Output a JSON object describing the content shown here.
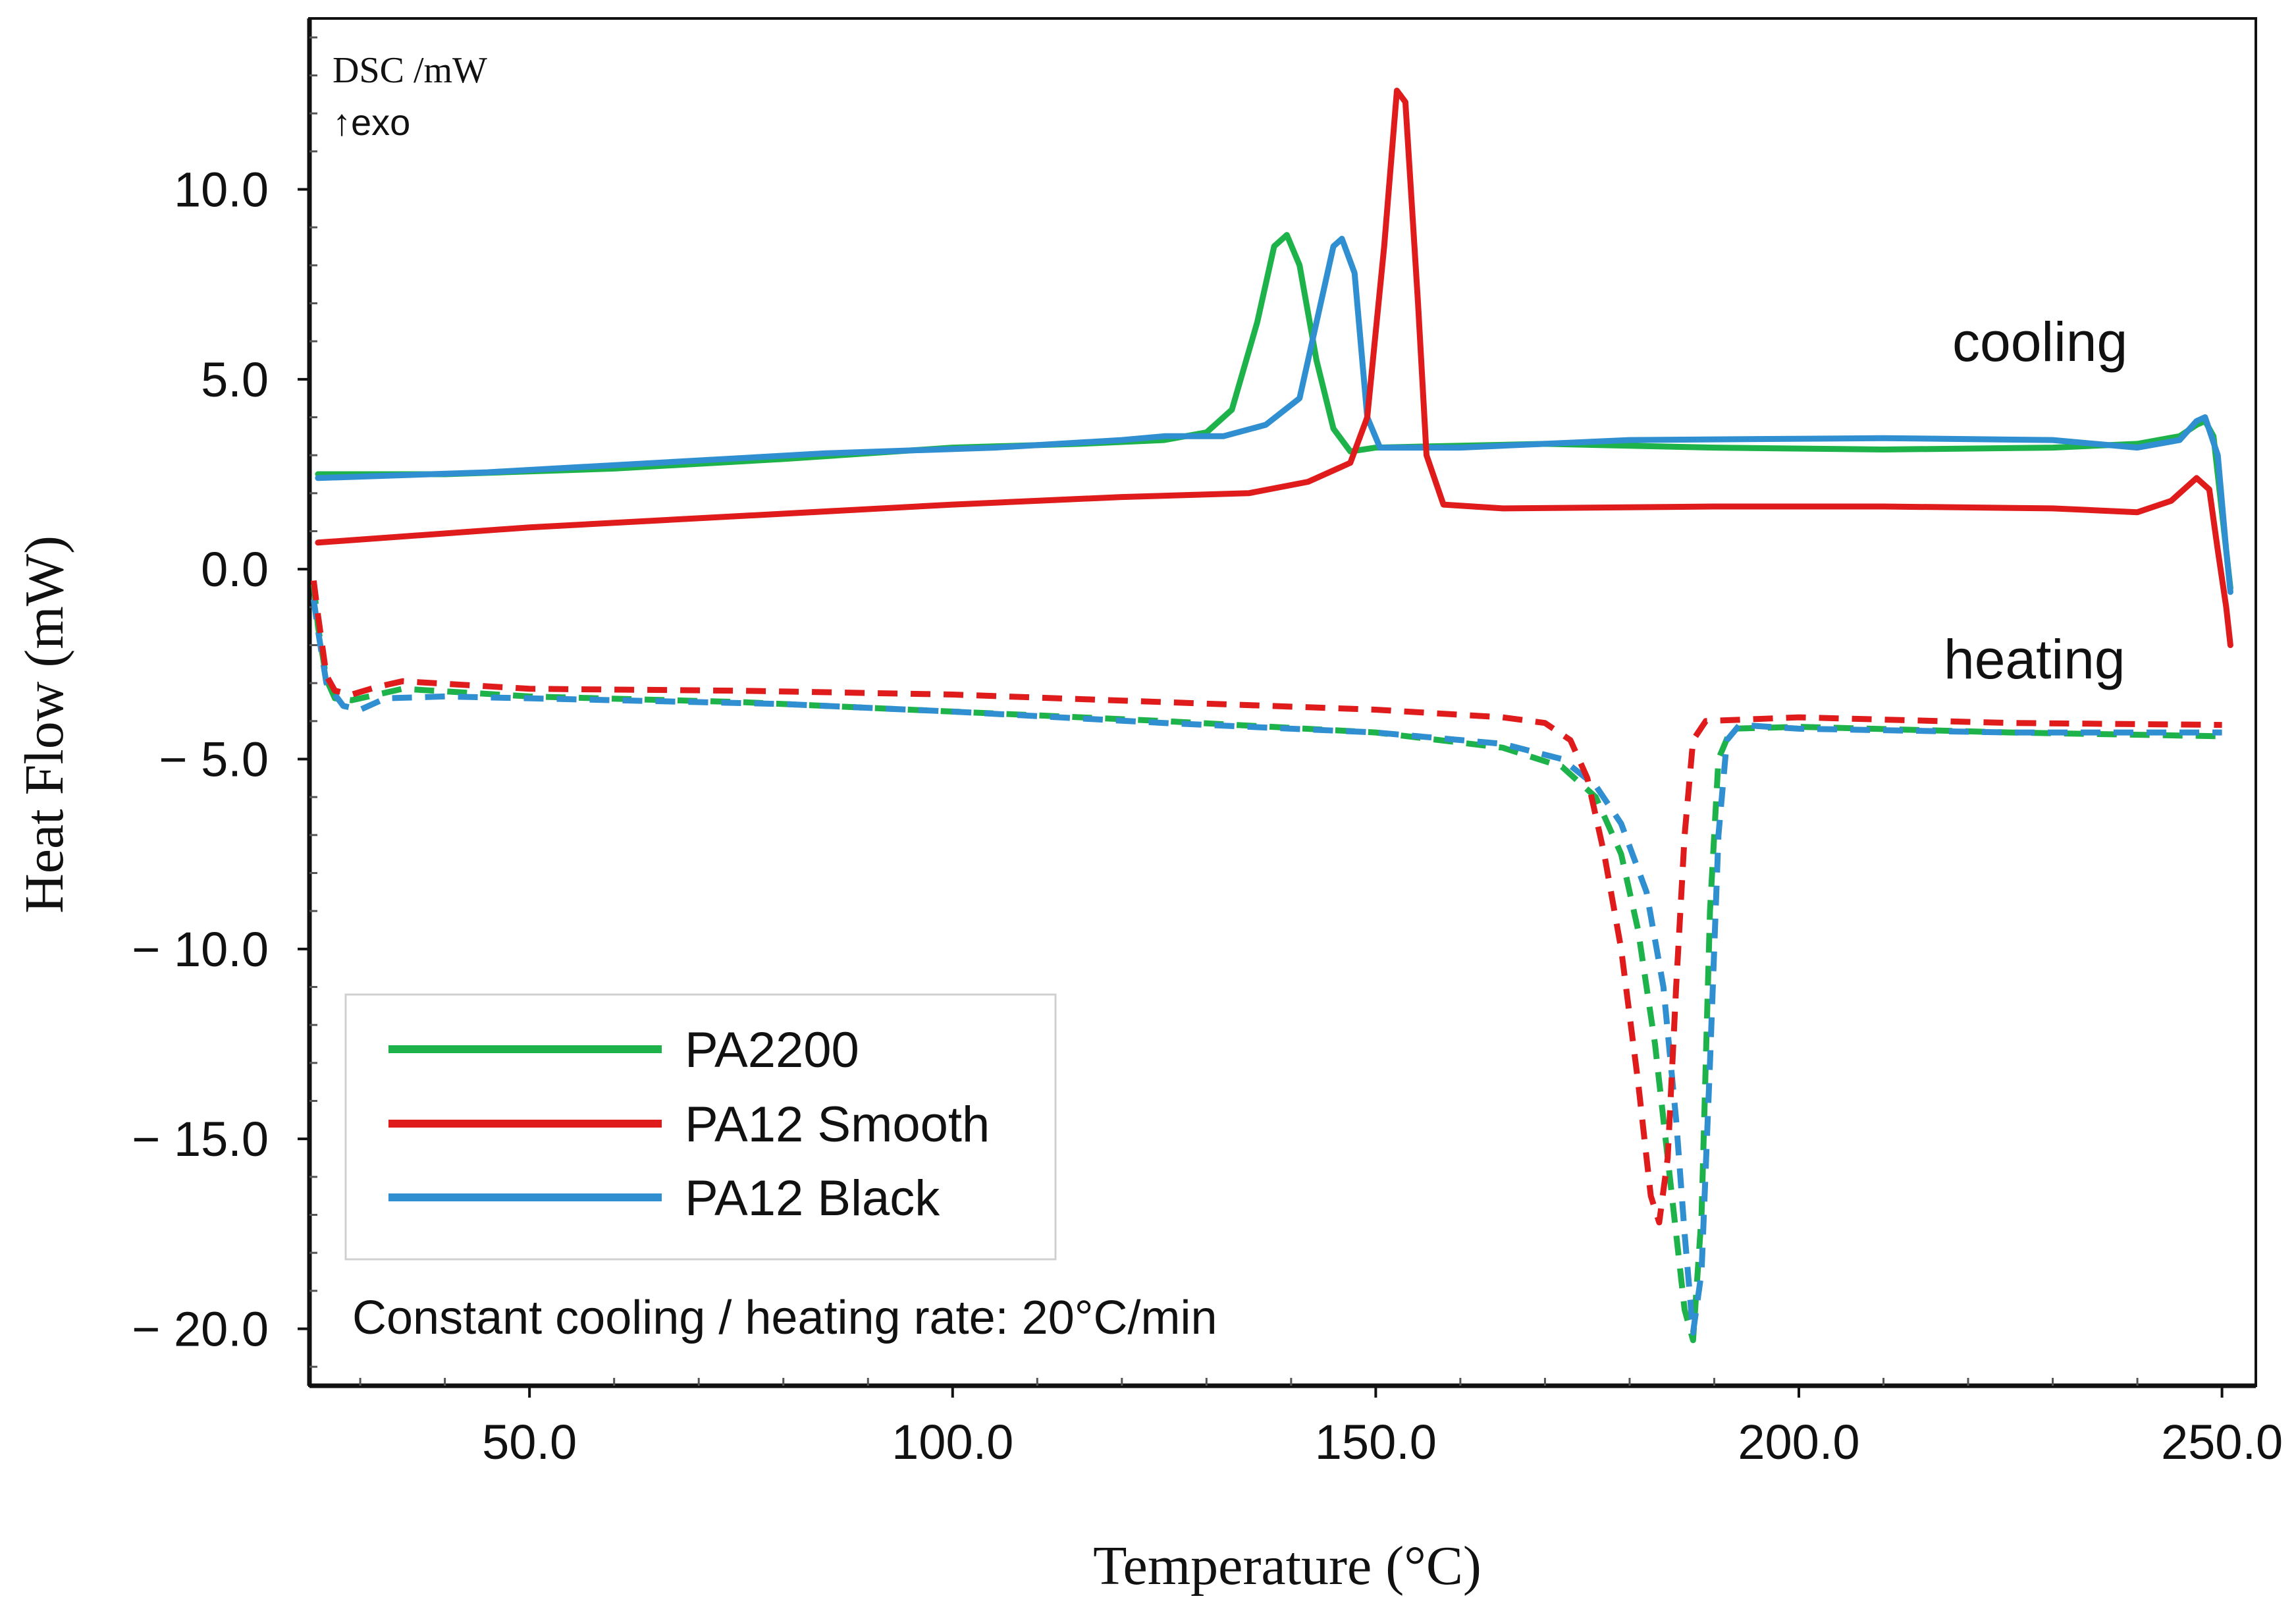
{
  "chart_data": {
    "type": "line",
    "title": "",
    "xlabel": "Temperature (°C)",
    "ylabel": "Heat Flow (mW)",
    "xlim": [
      24,
      254
    ],
    "ylim": [
      -21.5,
      14.5
    ],
    "x_ticks": [
      50,
      100,
      150,
      200,
      250
    ],
    "x_tick_labels": [
      "50.0",
      "100.0",
      "150.0",
      "200.0",
      "250.0"
    ],
    "y_ticks": [
      10,
      5,
      0,
      -5,
      -10,
      -15,
      -20
    ],
    "y_tick_labels": [
      "10.0",
      "5.0",
      "0.0",
      "− 5.0",
      "− 10.0",
      "− 15.0",
      "− 20.0"
    ],
    "unit_label": "DSC /mW",
    "exo_label": "↑exo",
    "annotations": {
      "cooling": "cooling",
      "heating": "heating",
      "rate": "Constant cooling / heating rate: 20°C/min"
    },
    "legend": {
      "placement": "bottom-left",
      "entries": [
        {
          "name": "PA2200",
          "color": "#1db34a"
        },
        {
          "name": "PA12 Smooth",
          "color": "#e01b1b"
        },
        {
          "name": "PA12 Black",
          "color": "#2f8fd0"
        }
      ]
    },
    "series": [
      {
        "name": "PA2200",
        "mode": "cooling",
        "style": "solid",
        "color": "#1db34a",
        "points": [
          [
            25,
            2.5
          ],
          [
            40,
            2.5
          ],
          [
            60,
            2.65
          ],
          [
            80,
            2.9
          ],
          [
            100,
            3.2
          ],
          [
            115,
            3.3
          ],
          [
            125,
            3.4
          ],
          [
            130,
            3.6
          ],
          [
            133,
            4.2
          ],
          [
            136,
            6.5
          ],
          [
            138,
            8.5
          ],
          [
            139.5,
            8.8
          ],
          [
            141,
            8.0
          ],
          [
            143,
            5.5
          ],
          [
            145,
            3.7
          ],
          [
            147,
            3.1
          ],
          [
            150,
            3.2
          ],
          [
            170,
            3.3
          ],
          [
            190,
            3.2
          ],
          [
            210,
            3.15
          ],
          [
            230,
            3.2
          ],
          [
            240,
            3.3
          ],
          [
            245,
            3.5
          ],
          [
            247,
            3.8
          ],
          [
            248,
            3.9
          ],
          [
            249,
            3.5
          ],
          [
            250,
            1.5
          ],
          [
            251,
            -0.5
          ]
        ]
      },
      {
        "name": "PA12 Smooth",
        "mode": "cooling",
        "style": "solid",
        "color": "#e01b1b",
        "points": [
          [
            25,
            0.7
          ],
          [
            50,
            1.1
          ],
          [
            75,
            1.4
          ],
          [
            100,
            1.7
          ],
          [
            120,
            1.9
          ],
          [
            135,
            2.0
          ],
          [
            142,
            2.3
          ],
          [
            147,
            2.8
          ],
          [
            149,
            4.0
          ],
          [
            151,
            8.5
          ],
          [
            152.5,
            12.6
          ],
          [
            153.5,
            12.3
          ],
          [
            155,
            7.0
          ],
          [
            156,
            3.0
          ],
          [
            158,
            1.7
          ],
          [
            165,
            1.6
          ],
          [
            190,
            1.65
          ],
          [
            210,
            1.65
          ],
          [
            230,
            1.6
          ],
          [
            240,
            1.5
          ],
          [
            244,
            1.8
          ],
          [
            247,
            2.4
          ],
          [
            248.5,
            2.1
          ],
          [
            249.5,
            0.5
          ],
          [
            250.5,
            -1.0
          ],
          [
            251,
            -2.0
          ]
        ]
      },
      {
        "name": "PA12 Black",
        "mode": "cooling",
        "style": "solid",
        "color": "#2f8fd0",
        "points": [
          [
            25,
            2.4
          ],
          [
            45,
            2.55
          ],
          [
            65,
            2.8
          ],
          [
            85,
            3.05
          ],
          [
            105,
            3.2
          ],
          [
            120,
            3.4
          ],
          [
            125,
            3.5
          ],
          [
            132,
            3.5
          ],
          [
            137,
            3.8
          ],
          [
            141,
            4.5
          ],
          [
            143,
            6.5
          ],
          [
            145,
            8.5
          ],
          [
            146,
            8.7
          ],
          [
            147.5,
            7.8
          ],
          [
            149,
            4.0
          ],
          [
            150.5,
            3.2
          ],
          [
            160,
            3.2
          ],
          [
            180,
            3.4
          ],
          [
            210,
            3.45
          ],
          [
            230,
            3.4
          ],
          [
            240,
            3.2
          ],
          [
            245,
            3.4
          ],
          [
            247,
            3.9
          ],
          [
            248,
            4.0
          ],
          [
            249.5,
            3.0
          ],
          [
            250.5,
            0.5
          ],
          [
            251,
            -0.6
          ]
        ]
      },
      {
        "name": "PA2200",
        "mode": "heating",
        "style": "dashed",
        "color": "#1db34a",
        "points": [
          [
            24.5,
            -0.4
          ],
          [
            25,
            -1.5
          ],
          [
            26,
            -2.9
          ],
          [
            27,
            -3.4
          ],
          [
            29,
            -3.45
          ],
          [
            32,
            -3.3
          ],
          [
            35,
            -3.15
          ],
          [
            50,
            -3.35
          ],
          [
            75,
            -3.5
          ],
          [
            100,
            -3.75
          ],
          [
            125,
            -4.0
          ],
          [
            150,
            -4.3
          ],
          [
            165,
            -4.7
          ],
          [
            172,
            -5.2
          ],
          [
            176,
            -6.0
          ],
          [
            179,
            -7.5
          ],
          [
            181,
            -9.5
          ],
          [
            183,
            -12.5
          ],
          [
            185,
            -16.5
          ],
          [
            186.5,
            -19.5
          ],
          [
            187.5,
            -20.3
          ],
          [
            188.5,
            -17.0
          ],
          [
            189.5,
            -9.0
          ],
          [
            190.5,
            -5.0
          ],
          [
            192,
            -4.2
          ],
          [
            200,
            -4.15
          ],
          [
            225,
            -4.3
          ],
          [
            250,
            -4.4
          ]
        ]
      },
      {
        "name": "PA12 Smooth",
        "mode": "heating",
        "style": "dashed",
        "color": "#e01b1b",
        "points": [
          [
            24.5,
            -0.3
          ],
          [
            25,
            -1.2
          ],
          [
            26,
            -2.8
          ],
          [
            27,
            -3.2
          ],
          [
            29,
            -3.3
          ],
          [
            32,
            -3.1
          ],
          [
            35,
            -2.95
          ],
          [
            50,
            -3.15
          ],
          [
            75,
            -3.2
          ],
          [
            100,
            -3.3
          ],
          [
            125,
            -3.5
          ],
          [
            150,
            -3.7
          ],
          [
            165,
            -3.9
          ],
          [
            170,
            -4.05
          ],
          [
            173,
            -4.5
          ],
          [
            175,
            -5.5
          ],
          [
            177,
            -7.5
          ],
          [
            179,
            -10.0
          ],
          [
            181,
            -13.5
          ],
          [
            182.5,
            -16.5
          ],
          [
            183.5,
            -17.2
          ],
          [
            184.5,
            -15.5
          ],
          [
            185.5,
            -11.0
          ],
          [
            186.5,
            -7.0
          ],
          [
            187.5,
            -4.5
          ],
          [
            189,
            -4.0
          ],
          [
            200,
            -3.9
          ],
          [
            225,
            -4.05
          ],
          [
            250,
            -4.1
          ]
        ]
      },
      {
        "name": "PA12 Black",
        "mode": "heating",
        "style": "dashed",
        "color": "#2f8fd0",
        "points": [
          [
            24.5,
            -0.8
          ],
          [
            25,
            -1.6
          ],
          [
            26,
            -3.0
          ],
          [
            28,
            -3.6
          ],
          [
            30,
            -3.7
          ],
          [
            33,
            -3.4
          ],
          [
            40,
            -3.35
          ],
          [
            60,
            -3.45
          ],
          [
            80,
            -3.55
          ],
          [
            100,
            -3.75
          ],
          [
            125,
            -4.05
          ],
          [
            150,
            -4.3
          ],
          [
            165,
            -4.6
          ],
          [
            172,
            -5.0
          ],
          [
            176,
            -5.7
          ],
          [
            179,
            -6.7
          ],
          [
            182,
            -8.5
          ],
          [
            184,
            -11.0
          ],
          [
            185.5,
            -14.5
          ],
          [
            186.5,
            -17.5
          ],
          [
            187.5,
            -20.1
          ],
          [
            188.5,
            -18.5
          ],
          [
            189.5,
            -13.0
          ],
          [
            190.5,
            -7.0
          ],
          [
            191.5,
            -4.5
          ],
          [
            193,
            -4.1
          ],
          [
            200,
            -4.2
          ],
          [
            225,
            -4.3
          ],
          [
            250,
            -4.3
          ]
        ]
      }
    ]
  }
}
